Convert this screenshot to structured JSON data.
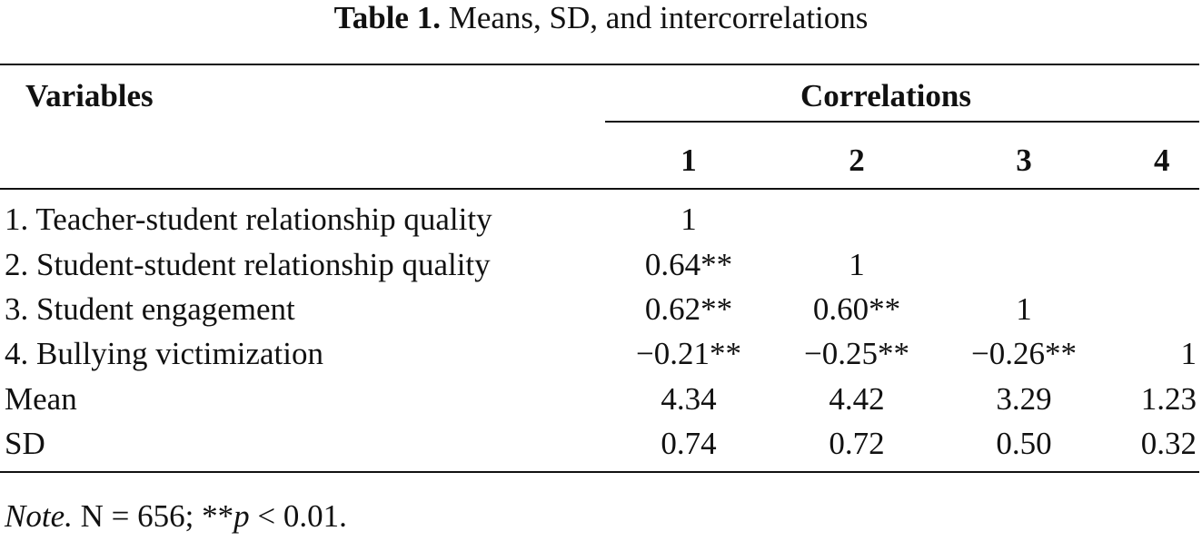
{
  "caption": {
    "label": "Table 1.",
    "text": "Means, SD, and intercorrelations"
  },
  "header": {
    "variables": "Variables",
    "correlations": "Correlations",
    "columns": [
      "1",
      "2",
      "3",
      "4"
    ]
  },
  "rows": [
    {
      "label": "1. Teacher-student relationship quality",
      "values": [
        "1",
        "",
        "",
        ""
      ]
    },
    {
      "label": "2. Student-student relationship quality",
      "values": [
        "0.64**",
        "1",
        "",
        ""
      ]
    },
    {
      "label": "3. Student engagement",
      "values": [
        "0.62**",
        "0.60**",
        "1",
        ""
      ]
    },
    {
      "label": "4. Bullying victimization",
      "values": [
        "−0.21**",
        "−0.25**",
        "−0.26**",
        "1"
      ]
    },
    {
      "label": "Mean",
      "values": [
        "4.34",
        "4.42",
        "3.29",
        "1.23"
      ]
    },
    {
      "label": "SD",
      "values": [
        "0.74",
        "0.72",
        "0.50",
        "0.32"
      ]
    }
  ],
  "note": {
    "lead": "Note.",
    "text_a": " N = 656; **",
    "p": "p",
    "text_b": " < 0.01."
  }
}
